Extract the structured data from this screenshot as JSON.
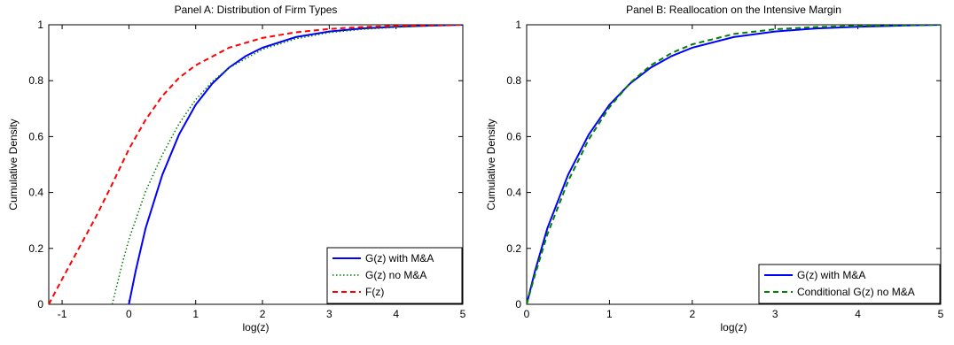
{
  "chart_data": [
    {
      "type": "line",
      "title": "Panel A: Distribution of Firm Types",
      "xlabel": "log(z)",
      "ylabel": "Cumulative Density",
      "xlim": [
        -1.2,
        5
      ],
      "ylim": [
        0,
        1
      ],
      "xticks": [
        -1,
        0,
        1,
        2,
        3,
        4,
        5
      ],
      "yticks": [
        0,
        0.2,
        0.4,
        0.6,
        0.8,
        1
      ],
      "grid": false,
      "legend_position": "bottom-right",
      "series": [
        {
          "name": "G(z) with M&A",
          "color": "#0000ff",
          "style": "solid",
          "x": [
            0,
            0.1,
            0.25,
            0.5,
            0.75,
            1.0,
            1.25,
            1.5,
            1.75,
            2.0,
            2.5,
            3.0,
            3.5,
            4.0,
            4.5,
            5.0
          ],
          "y": [
            0,
            0.118,
            0.272,
            0.463,
            0.607,
            0.714,
            0.79,
            0.847,
            0.888,
            0.918,
            0.956,
            0.976,
            0.987,
            0.993,
            0.997,
            1.0
          ]
        },
        {
          "name": "G(z) no M&A",
          "color": "#007a00",
          "style": "dotted",
          "x": [
            -0.25,
            -0.1,
            0.0,
            0.25,
            0.5,
            0.75,
            1.0,
            1.25,
            1.5,
            2.0,
            2.5,
            3.0,
            3.5,
            4.0,
            4.5,
            5.0
          ],
          "y": [
            0,
            0.145,
            0.232,
            0.404,
            0.535,
            0.646,
            0.732,
            0.797,
            0.846,
            0.912,
            0.95,
            0.972,
            0.984,
            0.991,
            0.996,
            1.0
          ]
        },
        {
          "name": "F(z)",
          "color": "#ff0000",
          "style": "dashed",
          "x": [
            -1.2,
            -1.0,
            -0.75,
            -0.5,
            -0.25,
            0.0,
            0.25,
            0.5,
            0.75,
            1.0,
            1.5,
            2.0,
            2.5,
            3.0,
            3.5,
            4.0,
            4.5,
            5.0
          ],
          "y": [
            0,
            0.09,
            0.2,
            0.31,
            0.43,
            0.555,
            0.66,
            0.745,
            0.81,
            0.855,
            0.918,
            0.953,
            0.973,
            0.985,
            0.992,
            0.996,
            0.998,
            1.0
          ]
        }
      ]
    },
    {
      "type": "line",
      "title": "Panel B: Reallocation on the Intensive Margin",
      "xlabel": "log(z)",
      "ylabel": "Cumulative Density",
      "xlim": [
        0,
        5
      ],
      "ylim": [
        0,
        1
      ],
      "xticks": [
        0,
        1,
        2,
        3,
        4,
        5
      ],
      "yticks": [
        0,
        0.2,
        0.4,
        0.6,
        0.8,
        1
      ],
      "grid": false,
      "legend_position": "bottom-right",
      "series": [
        {
          "name": "G(z) with M&A",
          "color": "#0000ff",
          "style": "solid",
          "x": [
            0,
            0.1,
            0.25,
            0.5,
            0.75,
            1.0,
            1.25,
            1.5,
            1.75,
            2.0,
            2.5,
            3.0,
            3.5,
            4.0,
            4.5,
            5.0
          ],
          "y": [
            0,
            0.118,
            0.272,
            0.463,
            0.607,
            0.714,
            0.79,
            0.847,
            0.888,
            0.918,
            0.956,
            0.976,
            0.987,
            0.993,
            0.997,
            1.0
          ]
        },
        {
          "name": "Conditional G(z) no M&A",
          "color": "#008000",
          "style": "dashed",
          "x": [
            0,
            0.1,
            0.25,
            0.5,
            0.75,
            1.0,
            1.25,
            1.5,
            1.75,
            2.0,
            2.5,
            3.0,
            3.5,
            4.0,
            4.5,
            5.0
          ],
          "y": [
            0,
            0.105,
            0.25,
            0.44,
            0.59,
            0.705,
            0.792,
            0.855,
            0.899,
            0.93,
            0.967,
            0.984,
            0.992,
            0.996,
            0.998,
            1.0
          ]
        }
      ]
    }
  ]
}
